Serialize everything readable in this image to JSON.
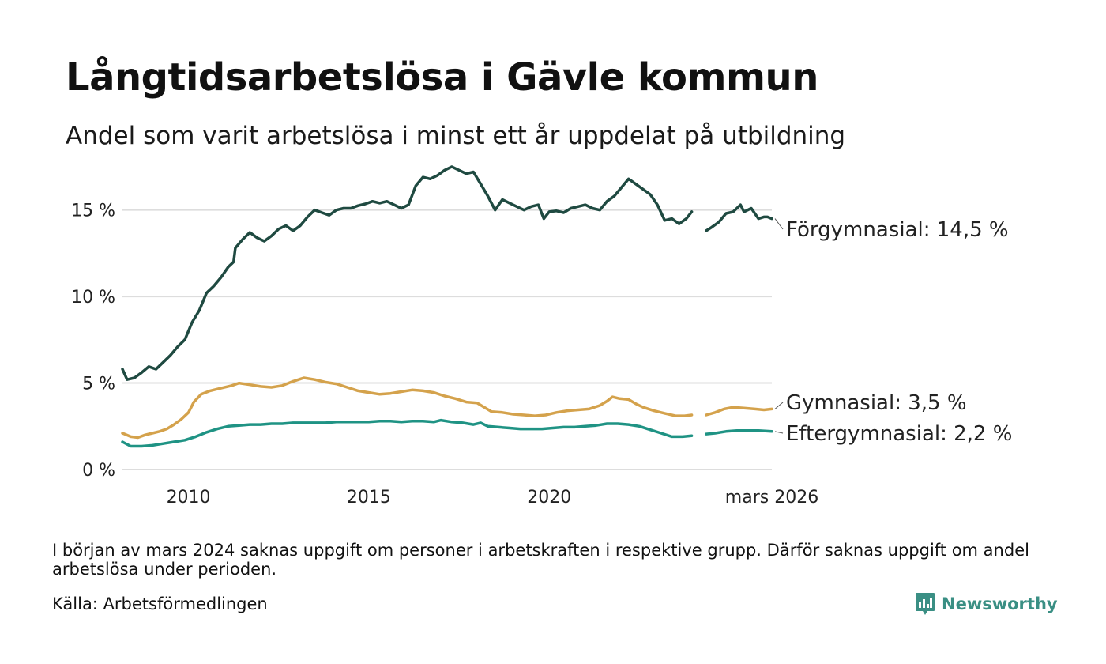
{
  "title": "Långtidsarbetslösa i Gävle kommun",
  "subtitle": "Andel som varit arbetslösa i minst ett år uppdelat på utbildning",
  "footnote": "I början av mars 2024 saknas uppgift om personer i arbetskraften i respektive grupp. Därför saknas uppgift om andel arbetslösa under perioden.",
  "source": "Källa: Arbetsförmedlingen",
  "brand": "Newsworthy",
  "colors": {
    "forgymnasial": "#1f4a41",
    "gymnasial": "#d4a24c",
    "eftergymnasial": "#1f9384",
    "grid": "#dddddd",
    "brand": "#3a8f84"
  },
  "chart_data": {
    "type": "line",
    "ylim": [
      0,
      18
    ],
    "xlim": [
      2008.17,
      2026.17
    ],
    "y_ticks": [
      {
        "value": 0,
        "label": "0 %"
      },
      {
        "value": 5,
        "label": "5 %"
      },
      {
        "value": 10,
        "label": "10 %"
      },
      {
        "value": 15,
        "label": "15 %"
      }
    ],
    "x_ticks": [
      {
        "value": 2010,
        "label": "2010"
      },
      {
        "value": 2015,
        "label": "2015"
      },
      {
        "value": 2020,
        "label": "2020"
      },
      {
        "value": 2026.17,
        "label": "mars 2026"
      }
    ],
    "gap": [
      2023.95,
      2024.35
    ],
    "series": [
      {
        "name": "Förgymnasial",
        "end_label": "Förgymnasial: 14,5 %",
        "color": "#1f4a41",
        "points": [
          [
            2008.17,
            5.8
          ],
          [
            2008.3,
            5.2
          ],
          [
            2008.5,
            5.3
          ],
          [
            2008.7,
            5.6
          ],
          [
            2008.9,
            5.95
          ],
          [
            2009.1,
            5.8
          ],
          [
            2009.3,
            6.2
          ],
          [
            2009.5,
            6.6
          ],
          [
            2009.7,
            7.1
          ],
          [
            2009.9,
            7.5
          ],
          [
            2010.1,
            8.5
          ],
          [
            2010.3,
            9.2
          ],
          [
            2010.5,
            10.2
          ],
          [
            2010.7,
            10.6
          ],
          [
            2010.9,
            11.1
          ],
          [
            2011.1,
            11.7
          ],
          [
            2011.25,
            12.0
          ],
          [
            2011.3,
            12.8
          ],
          [
            2011.5,
            13.3
          ],
          [
            2011.7,
            13.7
          ],
          [
            2011.9,
            13.4
          ],
          [
            2012.1,
            13.2
          ],
          [
            2012.3,
            13.5
          ],
          [
            2012.5,
            13.9
          ],
          [
            2012.7,
            14.1
          ],
          [
            2012.9,
            13.8
          ],
          [
            2013.1,
            14.1
          ],
          [
            2013.3,
            14.6
          ],
          [
            2013.5,
            15.0
          ],
          [
            2013.7,
            14.85
          ],
          [
            2013.9,
            14.7
          ],
          [
            2014.1,
            15.0
          ],
          [
            2014.3,
            15.1
          ],
          [
            2014.5,
            15.1
          ],
          [
            2014.7,
            15.25
          ],
          [
            2014.9,
            15.35
          ],
          [
            2015.1,
            15.5
          ],
          [
            2015.3,
            15.4
          ],
          [
            2015.5,
            15.5
          ],
          [
            2015.7,
            15.3
          ],
          [
            2015.9,
            15.1
          ],
          [
            2016.1,
            15.3
          ],
          [
            2016.3,
            16.4
          ],
          [
            2016.5,
            16.9
          ],
          [
            2016.7,
            16.8
          ],
          [
            2016.9,
            17.0
          ],
          [
            2017.1,
            17.3
          ],
          [
            2017.3,
            17.5
          ],
          [
            2017.5,
            17.3
          ],
          [
            2017.7,
            17.1
          ],
          [
            2017.9,
            17.2
          ],
          [
            2018.1,
            16.5
          ],
          [
            2018.3,
            15.8
          ],
          [
            2018.5,
            15.0
          ],
          [
            2018.7,
            15.6
          ],
          [
            2018.9,
            15.4
          ],
          [
            2019.1,
            15.2
          ],
          [
            2019.3,
            15.0
          ],
          [
            2019.5,
            15.2
          ],
          [
            2019.7,
            15.3
          ],
          [
            2019.85,
            14.5
          ],
          [
            2020.0,
            14.9
          ],
          [
            2020.2,
            14.95
          ],
          [
            2020.4,
            14.85
          ],
          [
            2020.6,
            15.1
          ],
          [
            2020.8,
            15.2
          ],
          [
            2021.0,
            15.3
          ],
          [
            2021.2,
            15.1
          ],
          [
            2021.4,
            15.0
          ],
          [
            2021.6,
            15.5
          ],
          [
            2021.8,
            15.8
          ],
          [
            2022.0,
            16.3
          ],
          [
            2022.2,
            16.8
          ],
          [
            2022.4,
            16.5
          ],
          [
            2022.6,
            16.2
          ],
          [
            2022.8,
            15.9
          ],
          [
            2023.0,
            15.3
          ],
          [
            2023.2,
            14.4
          ],
          [
            2023.4,
            14.5
          ],
          [
            2023.6,
            14.2
          ],
          [
            2023.8,
            14.5
          ],
          [
            2023.95,
            14.9
          ],
          [
            2024.35,
            13.8
          ],
          [
            2024.5,
            14.0
          ],
          [
            2024.7,
            14.3
          ],
          [
            2024.9,
            14.8
          ],
          [
            2025.1,
            14.9
          ],
          [
            2025.3,
            15.3
          ],
          [
            2025.4,
            14.9
          ],
          [
            2025.6,
            15.1
          ],
          [
            2025.8,
            14.5
          ],
          [
            2025.95,
            14.6
          ],
          [
            2026.05,
            14.6
          ],
          [
            2026.17,
            14.5
          ]
        ]
      },
      {
        "name": "Gymnasial",
        "end_label": "Gymnasial:  3,5 %",
        "color": "#d4a24c",
        "points": [
          [
            2008.17,
            2.1
          ],
          [
            2008.4,
            1.9
          ],
          [
            2008.6,
            1.85
          ],
          [
            2008.8,
            2.0
          ],
          [
            2009.0,
            2.1
          ],
          [
            2009.2,
            2.2
          ],
          [
            2009.4,
            2.35
          ],
          [
            2009.6,
            2.6
          ],
          [
            2009.8,
            2.9
          ],
          [
            2010.0,
            3.3
          ],
          [
            2010.15,
            3.9
          ],
          [
            2010.35,
            4.35
          ],
          [
            2010.6,
            4.55
          ],
          [
            2010.9,
            4.7
          ],
          [
            2011.2,
            4.85
          ],
          [
            2011.4,
            5.0
          ],
          [
            2011.7,
            4.9
          ],
          [
            2012.0,
            4.8
          ],
          [
            2012.3,
            4.75
          ],
          [
            2012.6,
            4.85
          ],
          [
            2012.9,
            5.1
          ],
          [
            2013.2,
            5.3
          ],
          [
            2013.5,
            5.2
          ],
          [
            2013.8,
            5.05
          ],
          [
            2014.1,
            4.95
          ],
          [
            2014.4,
            4.75
          ],
          [
            2014.7,
            4.55
          ],
          [
            2015.0,
            4.45
          ],
          [
            2015.3,
            4.35
          ],
          [
            2015.6,
            4.4
          ],
          [
            2015.9,
            4.5
          ],
          [
            2016.2,
            4.6
          ],
          [
            2016.5,
            4.55
          ],
          [
            2016.8,
            4.45
          ],
          [
            2017.1,
            4.25
          ],
          [
            2017.4,
            4.1
          ],
          [
            2017.7,
            3.9
          ],
          [
            2018.0,
            3.85
          ],
          [
            2018.2,
            3.6
          ],
          [
            2018.4,
            3.35
          ],
          [
            2018.7,
            3.3
          ],
          [
            2019.0,
            3.2
          ],
          [
            2019.3,
            3.15
          ],
          [
            2019.6,
            3.1
          ],
          [
            2019.9,
            3.15
          ],
          [
            2020.2,
            3.3
          ],
          [
            2020.5,
            3.4
          ],
          [
            2020.8,
            3.45
          ],
          [
            2021.1,
            3.5
          ],
          [
            2021.4,
            3.7
          ],
          [
            2021.6,
            3.95
          ],
          [
            2021.75,
            4.2
          ],
          [
            2021.95,
            4.1
          ],
          [
            2022.2,
            4.05
          ],
          [
            2022.4,
            3.8
          ],
          [
            2022.6,
            3.6
          ],
          [
            2022.9,
            3.4
          ],
          [
            2023.2,
            3.25
          ],
          [
            2023.5,
            3.1
          ],
          [
            2023.75,
            3.1
          ],
          [
            2023.95,
            3.15
          ],
          [
            2024.35,
            3.15
          ],
          [
            2024.6,
            3.3
          ],
          [
            2024.85,
            3.5
          ],
          [
            2025.1,
            3.6
          ],
          [
            2025.4,
            3.55
          ],
          [
            2025.7,
            3.5
          ],
          [
            2025.95,
            3.45
          ],
          [
            2026.17,
            3.5
          ]
        ]
      },
      {
        "name": "Eftergymnasial",
        "end_label": "Eftergymnasial:  2,2 %",
        "color": "#1f9384",
        "points": [
          [
            2008.17,
            1.6
          ],
          [
            2008.4,
            1.35
          ],
          [
            2008.7,
            1.35
          ],
          [
            2009.0,
            1.4
          ],
          [
            2009.3,
            1.5
          ],
          [
            2009.6,
            1.6
          ],
          [
            2009.9,
            1.7
          ],
          [
            2010.2,
            1.9
          ],
          [
            2010.5,
            2.15
          ],
          [
            2010.8,
            2.35
          ],
          [
            2011.1,
            2.5
          ],
          [
            2011.4,
            2.55
          ],
          [
            2011.7,
            2.6
          ],
          [
            2012.0,
            2.6
          ],
          [
            2012.3,
            2.65
          ],
          [
            2012.6,
            2.65
          ],
          [
            2012.9,
            2.7
          ],
          [
            2013.2,
            2.7
          ],
          [
            2013.5,
            2.7
          ],
          [
            2013.8,
            2.7
          ],
          [
            2014.1,
            2.75
          ],
          [
            2014.4,
            2.75
          ],
          [
            2014.7,
            2.75
          ],
          [
            2015.0,
            2.75
          ],
          [
            2015.3,
            2.8
          ],
          [
            2015.6,
            2.8
          ],
          [
            2015.9,
            2.75
          ],
          [
            2016.2,
            2.8
          ],
          [
            2016.5,
            2.8
          ],
          [
            2016.8,
            2.75
          ],
          [
            2017.0,
            2.85
          ],
          [
            2017.3,
            2.75
          ],
          [
            2017.6,
            2.7
          ],
          [
            2017.9,
            2.6
          ],
          [
            2018.1,
            2.7
          ],
          [
            2018.3,
            2.5
          ],
          [
            2018.6,
            2.45
          ],
          [
            2018.9,
            2.4
          ],
          [
            2019.2,
            2.35
          ],
          [
            2019.5,
            2.35
          ],
          [
            2019.8,
            2.35
          ],
          [
            2020.1,
            2.4
          ],
          [
            2020.4,
            2.45
          ],
          [
            2020.7,
            2.45
          ],
          [
            2021.0,
            2.5
          ],
          [
            2021.3,
            2.55
          ],
          [
            2021.6,
            2.65
          ],
          [
            2021.9,
            2.65
          ],
          [
            2022.2,
            2.6
          ],
          [
            2022.5,
            2.5
          ],
          [
            2022.8,
            2.3
          ],
          [
            2023.1,
            2.1
          ],
          [
            2023.4,
            1.9
          ],
          [
            2023.7,
            1.9
          ],
          [
            2023.95,
            1.95
          ],
          [
            2024.35,
            2.05
          ],
          [
            2024.6,
            2.1
          ],
          [
            2024.9,
            2.2
          ],
          [
            2025.2,
            2.25
          ],
          [
            2025.5,
            2.25
          ],
          [
            2025.8,
            2.25
          ],
          [
            2026.17,
            2.2
          ]
        ]
      }
    ]
  }
}
